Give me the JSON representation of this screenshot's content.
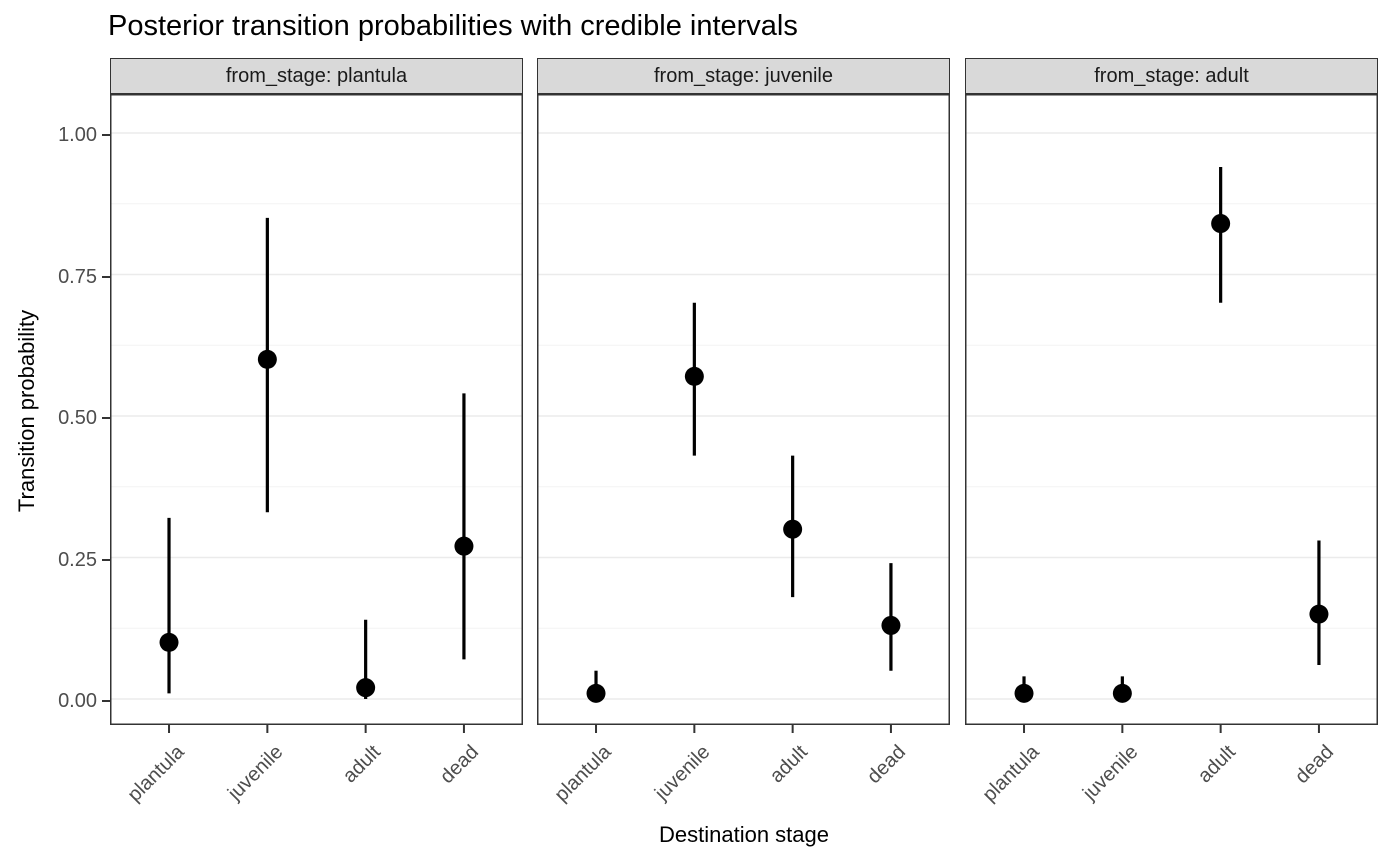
{
  "chart_data": {
    "type": "pointrange",
    "title": "Posterior transition probabilities with credible intervals",
    "xlabel": "Destination stage",
    "ylabel": "Transition probability",
    "ylim": [
      0,
      1
    ],
    "ytick_labels": [
      "0.00",
      "0.25",
      "0.50",
      "0.75",
      "1.00"
    ],
    "ytick_values": [
      0,
      0.25,
      0.5,
      0.75,
      1
    ],
    "minor_gridlines": [
      0.125,
      0.375,
      0.625,
      0.875
    ],
    "categories": [
      "plantula",
      "juvenile",
      "adult",
      "dead"
    ],
    "facet_variable": "from_stage",
    "grid": "on",
    "legend_position": "none",
    "facets": [
      {
        "label": "from_stage: plantula",
        "from_stage": "plantula",
        "series": [
          {
            "destination": "plantula",
            "mean": 0.1,
            "lower": 0.01,
            "upper": 0.32
          },
          {
            "destination": "juvenile",
            "mean": 0.6,
            "lower": 0.33,
            "upper": 0.85
          },
          {
            "destination": "adult",
            "mean": 0.02,
            "lower": 0.0,
            "upper": 0.14
          },
          {
            "destination": "dead",
            "mean": 0.27,
            "lower": 0.07,
            "upper": 0.54
          }
        ]
      },
      {
        "label": "from_stage: juvenile",
        "from_stage": "juvenile",
        "series": [
          {
            "destination": "plantula",
            "mean": 0.01,
            "lower": 0.0,
            "upper": 0.05
          },
          {
            "destination": "juvenile",
            "mean": 0.57,
            "lower": 0.43,
            "upper": 0.7
          },
          {
            "destination": "adult",
            "mean": 0.3,
            "lower": 0.18,
            "upper": 0.43
          },
          {
            "destination": "dead",
            "mean": 0.13,
            "lower": 0.05,
            "upper": 0.24
          }
        ]
      },
      {
        "label": "from_stage: adult",
        "from_stage": "adult",
        "series": [
          {
            "destination": "plantula",
            "mean": 0.01,
            "lower": 0.0,
            "upper": 0.04
          },
          {
            "destination": "juvenile",
            "mean": 0.01,
            "lower": 0.0,
            "upper": 0.04
          },
          {
            "destination": "adult",
            "mean": 0.84,
            "lower": 0.7,
            "upper": 0.94
          },
          {
            "destination": "dead",
            "mean": 0.15,
            "lower": 0.06,
            "upper": 0.28
          }
        ]
      }
    ],
    "colors": {
      "point": "#000000",
      "interval": "#000000",
      "strip_background": "#D9D9D9",
      "strip_text": "#1A1A1A",
      "panel_border": "#333333",
      "panel_background": "#FFFFFF",
      "grid_major": "#EBEBEB",
      "grid_minor": "#F3F3F3",
      "axis_text": "#4D4D4D",
      "axis_title": "#000000",
      "background": "#FFFFFF"
    }
  }
}
